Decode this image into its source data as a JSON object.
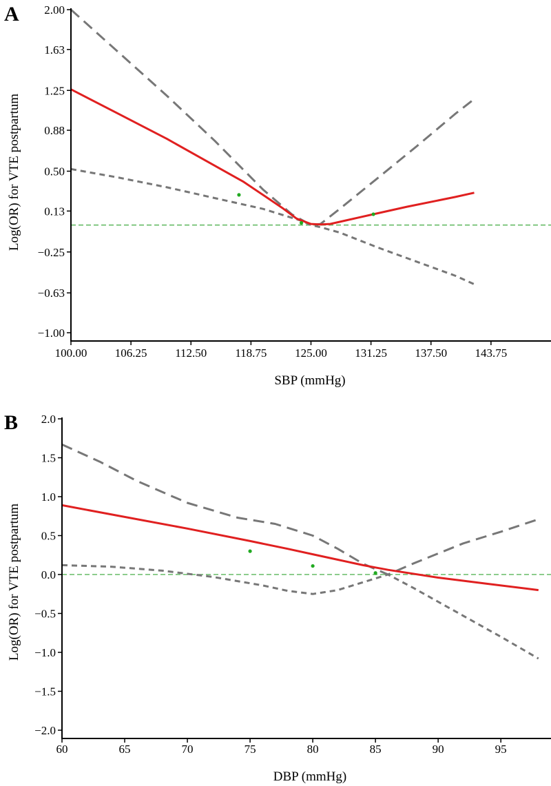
{
  "chart_data": [
    {
      "type": "line",
      "panel_label": "A",
      "xlabel": "SBP (mmHg)",
      "ylabel": "Log(OR) for VTE postpartum",
      "xlim": [
        100,
        150
      ],
      "ylim": [
        -1.0,
        2.0
      ],
      "x_ticks": [
        100.0,
        106.25,
        112.5,
        118.75,
        125.0,
        131.25,
        137.5,
        143.75
      ],
      "x_tick_labels": [
        "100.00",
        "106.25",
        "112.50",
        "118.75",
        "125.00",
        "131.25",
        "137.50",
        "143.75"
      ],
      "y_ticks": [
        2.0,
        1.63,
        1.25,
        0.88,
        0.5,
        0.13,
        -0.25,
        -0.63,
        -1.0
      ],
      "y_tick_labels": [
        "2.00",
        "1.63",
        "1.25",
        "0.88",
        "0.50",
        "0.13",
        "−0.25",
        "−0.63",
        "−1.00"
      ],
      "reference_line": {
        "y": 0,
        "color": "#66bb66"
      },
      "series": [
        {
          "style": "solid",
          "color": "#e02020",
          "x": [
            100,
            105,
            110,
            115,
            118,
            120,
            122,
            123.5,
            125,
            126,
            127,
            128,
            130,
            131.5,
            135,
            140,
            142
          ],
          "y": [
            1.26,
            1.03,
            0.8,
            0.55,
            0.4,
            0.28,
            0.16,
            0.06,
            0.01,
            0.005,
            0.01,
            0.03,
            0.07,
            0.1,
            0.17,
            0.26,
            0.3
          ]
        },
        {
          "style": "long-dash",
          "color": "#777777",
          "x": [
            100,
            105,
            110,
            115,
            120,
            123,
            125,
            126,
            128,
            132,
            136,
            140,
            142
          ],
          "y": [
            2.0,
            1.6,
            1.2,
            0.78,
            0.33,
            0.1,
            0.0,
            0.01,
            0.15,
            0.44,
            0.73,
            1.03,
            1.17
          ]
        },
        {
          "style": "short-dash",
          "color": "#777777",
          "x": [
            100,
            105,
            110,
            115,
            120,
            124,
            125,
            126,
            128,
            132,
            136,
            140,
            142
          ],
          "y": [
            0.52,
            0.44,
            0.35,
            0.25,
            0.15,
            0.04,
            0.0,
            -0.02,
            -0.07,
            -0.21,
            -0.34,
            -0.47,
            -0.55
          ]
        }
      ],
      "knots": {
        "color": "#22aa22",
        "x": [
          117.5,
          124,
          131.5
        ],
        "y": [
          0.28,
          0.02,
          0.1
        ]
      }
    },
    {
      "type": "line",
      "panel_label": "B",
      "xlabel": "DBP (mmHg)",
      "ylabel": "Log(OR) for VTE postpartum",
      "xlim": [
        60,
        99
      ],
      "ylim": [
        -2.0,
        2.0
      ],
      "x_ticks": [
        60,
        65,
        70,
        75,
        80,
        85,
        90,
        95
      ],
      "x_tick_labels": [
        "60",
        "65",
        "70",
        "75",
        "80",
        "85",
        "90",
        "95"
      ],
      "y_ticks": [
        2.0,
        1.5,
        1.0,
        0.5,
        0.0,
        -0.5,
        -1.0,
        -1.5,
        -2.0
      ],
      "y_tick_labels": [
        "2.0",
        "1.5",
        "1.0",
        "0.5",
        "0.0",
        "−0.5",
        "−1.0",
        "−1.5",
        "−2.0"
      ],
      "reference_line": {
        "y": 0,
        "color": "#66bb66"
      },
      "series": [
        {
          "style": "solid",
          "color": "#e02020",
          "x": [
            60,
            65,
            70,
            75,
            78,
            80,
            82,
            84,
            85,
            86,
            90,
            94,
            98
          ],
          "y": [
            0.89,
            0.74,
            0.59,
            0.43,
            0.33,
            0.26,
            0.19,
            0.12,
            0.09,
            0.06,
            -0.04,
            -0.12,
            -0.2
          ]
        },
        {
          "style": "long-dash",
          "color": "#777777",
          "x": [
            60,
            63,
            66,
            70,
            74,
            77,
            80,
            82,
            84,
            86,
            88,
            92,
            95,
            98
          ],
          "y": [
            1.67,
            1.45,
            1.2,
            0.92,
            0.73,
            0.65,
            0.5,
            0.33,
            0.14,
            0.0,
            0.14,
            0.4,
            0.55,
            0.71
          ]
        },
        {
          "style": "short-dash",
          "color": "#777777",
          "x": [
            60,
            64,
            68,
            72,
            76,
            78,
            80,
            82,
            84,
            86,
            88,
            92,
            95,
            98
          ],
          "y": [
            0.12,
            0.1,
            0.05,
            -0.03,
            -0.14,
            -0.21,
            -0.25,
            -0.2,
            -0.1,
            0.0,
            -0.17,
            -0.53,
            -0.8,
            -1.08
          ]
        }
      ],
      "knots": {
        "color": "#22aa22",
        "x": [
          75,
          80,
          85
        ],
        "y": [
          0.3,
          0.11,
          0.02
        ]
      }
    }
  ]
}
